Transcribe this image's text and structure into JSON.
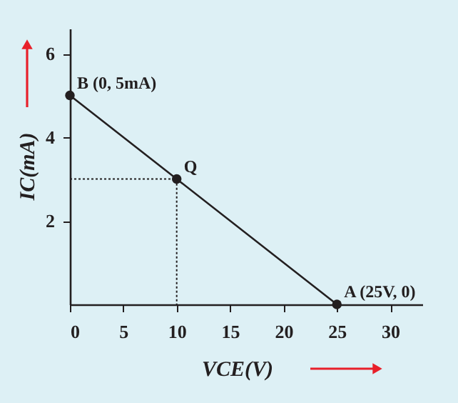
{
  "chart_data": {
    "type": "line",
    "xlabel": "VCE(V)",
    "ylabel": "IC(mA)",
    "xlim": [
      0,
      33
    ],
    "ylim": [
      0,
      6.6
    ],
    "xticks": [
      0,
      5,
      10,
      15,
      20,
      25,
      30
    ],
    "yticks": [
      2,
      4,
      6
    ],
    "grid": false,
    "series": [
      {
        "color": "#231f20",
        "x": [
          0,
          10,
          25
        ],
        "values": [
          5,
          3,
          0
        ],
        "marker": "circle",
        "line_style": "solid"
      },
      {
        "color": "#231f20",
        "x": [
          0,
          10,
          10
        ],
        "values": [
          3,
          3,
          0
        ],
        "marker": "none",
        "line_style": "dotted"
      }
    ],
    "annotations": [
      {
        "text": "B (0, 5mA)",
        "x": 0,
        "y": 5
      },
      {
        "text": "Q",
        "x": 10,
        "y": 3
      },
      {
        "text": "A (25V, 0)",
        "x": 25,
        "y": 0
      }
    ]
  }
}
